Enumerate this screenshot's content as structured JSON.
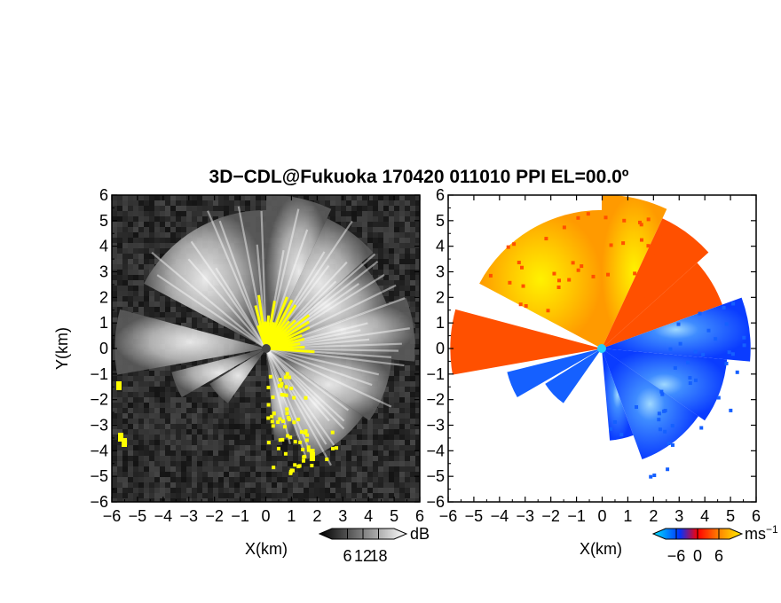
{
  "title": "3D−CDL@Fukuoka 170420 011010 PPI EL=00.0º",
  "colors": {
    "echo_yellow": "#ffff00",
    "velocity_negative": "#1560ff",
    "velocity_positive": "#ff5000",
    "velocity_zero": "#ffe000",
    "center_marker": "#22ccff",
    "background_intensity": "#222222"
  },
  "chart_data": [
    {
      "type": "heatmap",
      "product": "intensity",
      "xlabel": "X(km)",
      "ylabel": "Y(km)",
      "xlim": [
        -6,
        6
      ],
      "ylim": [
        -6,
        6
      ],
      "xticks": [
        -6,
        -5,
        -4,
        -3,
        -2,
        -1,
        0,
        1,
        2,
        3,
        4,
        5,
        6
      ],
      "yticks": [
        -6,
        -5,
        -4,
        -3,
        -2,
        -1,
        0,
        1,
        2,
        3,
        4,
        5,
        6
      ],
      "xtick_labels": [
        "−6",
        "−5",
        "−4",
        "−3",
        "−2",
        "−1",
        "0",
        "1",
        "2",
        "3",
        "4",
        "5",
        "6"
      ],
      "ytick_labels": [
        "−6",
        "−5",
        "−4",
        "−3",
        "−2",
        "−1",
        "0",
        "1",
        "2",
        "3",
        "4",
        "5",
        "6"
      ],
      "colorbar": {
        "unit": "dB",
        "ticks": [
          6,
          12,
          18
        ],
        "tick_labels": [
          "6",
          "12",
          "18"
        ],
        "colormap": "grayscale"
      }
    },
    {
      "type": "heatmap",
      "product": "doppler_velocity",
      "xlabel": "X(km)",
      "ylabel": "",
      "xlim": [
        -6,
        6
      ],
      "ylim": [
        -6,
        6
      ],
      "xticks": [
        -6,
        -5,
        -4,
        -3,
        -2,
        -1,
        0,
        1,
        2,
        3,
        4,
        5,
        6
      ],
      "yticks": [
        -6,
        -5,
        -4,
        -3,
        -2,
        -1,
        0,
        1,
        2,
        3,
        4,
        5,
        6
      ],
      "xtick_labels": [
        "−6",
        "−5",
        "−4",
        "−3",
        "−2",
        "−1",
        "0",
        "1",
        "2",
        "3",
        "4",
        "5",
        "6"
      ],
      "ytick_labels": [
        "−6",
        "−5",
        "−4",
        "−3",
        "−2",
        "−1",
        "0",
        "1",
        "2",
        "3",
        "4",
        "5",
        "6"
      ],
      "colorbar": {
        "unit": "ms",
        "unit_exponent": "−1",
        "ticks": [
          -6,
          0,
          6
        ],
        "tick_labels": [
          "−6",
          "0",
          "6"
        ],
        "colormap": "cyan-blue-red-orange-yellow"
      }
    }
  ]
}
